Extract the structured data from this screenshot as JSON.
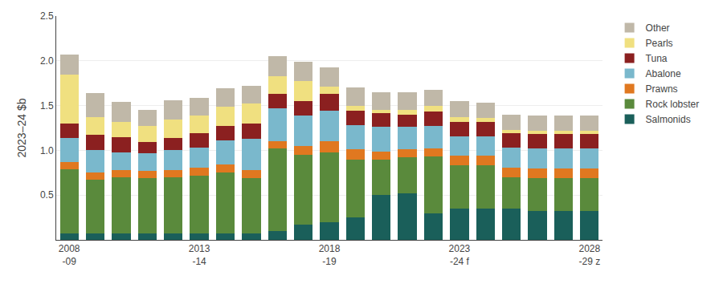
{
  "chart_data": {
    "type": "bar",
    "stacked": true,
    "categories": [
      "2008\n-09",
      null,
      null,
      null,
      null,
      "2013\n-14",
      null,
      null,
      null,
      null,
      "2018\n-19",
      null,
      null,
      null,
      null,
      "2023\n-24 f",
      null,
      null,
      null,
      null,
      "2028\n-29 z"
    ],
    "series": [
      {
        "name": "Salmonids",
        "color": "#1a5f5a",
        "values": [
          0.07,
          0.07,
          0.07,
          0.07,
          0.07,
          0.07,
          0.07,
          0.07,
          0.1,
          0.17,
          0.2,
          0.25,
          0.5,
          0.52,
          0.3,
          0.35,
          0.35,
          0.35,
          0.32,
          0.32,
          0.32
        ]
      },
      {
        "name": "Rock lobster",
        "color": "#5a8a3c",
        "values": [
          0.72,
          0.6,
          0.63,
          0.62,
          0.63,
          0.65,
          0.68,
          0.62,
          0.92,
          0.78,
          0.78,
          0.65,
          0.4,
          0.4,
          0.63,
          0.48,
          0.48,
          0.35,
          0.37,
          0.37,
          0.37
        ]
      },
      {
        "name": "Prawns",
        "color": "#e07820",
        "values": [
          0.08,
          0.08,
          0.08,
          0.08,
          0.08,
          0.09,
          0.09,
          0.09,
          0.08,
          0.1,
          0.12,
          0.11,
          0.09,
          0.09,
          0.09,
          0.11,
          0.11,
          0.11,
          0.11,
          0.11,
          0.11
        ]
      },
      {
        "name": "Abalone",
        "color": "#7ab8cc",
        "values": [
          0.27,
          0.25,
          0.2,
          0.2,
          0.22,
          0.22,
          0.27,
          0.35,
          0.37,
          0.34,
          0.34,
          0.27,
          0.27,
          0.25,
          0.25,
          0.22,
          0.22,
          0.22,
          0.22,
          0.22,
          0.22
        ]
      },
      {
        "name": "Tuna",
        "color": "#8b2020",
        "values": [
          0.16,
          0.17,
          0.17,
          0.12,
          0.14,
          0.16,
          0.16,
          0.17,
          0.16,
          0.16,
          0.19,
          0.16,
          0.16,
          0.14,
          0.16,
          0.16,
          0.16,
          0.16,
          0.16,
          0.16,
          0.16
        ]
      },
      {
        "name": "Pearls",
        "color": "#f0e080",
        "values": [
          0.55,
          0.2,
          0.17,
          0.18,
          0.2,
          0.2,
          0.22,
          0.22,
          0.2,
          0.22,
          0.08,
          0.06,
          0.03,
          0.05,
          0.07,
          0.05,
          0.04,
          0.04,
          0.04,
          0.04,
          0.04
        ]
      },
      {
        "name": "Other",
        "color": "#c0b8a8",
        "values": [
          0.22,
          0.27,
          0.22,
          0.18,
          0.22,
          0.2,
          0.2,
          0.2,
          0.22,
          0.22,
          0.22,
          0.2,
          0.2,
          0.2,
          0.18,
          0.18,
          0.17,
          0.17,
          0.17,
          0.17,
          0.17
        ]
      }
    ],
    "ylabel": "2023–24 $b",
    "ylim": [
      0,
      2.5
    ],
    "yticks": [
      0.5,
      {
        "value": 1.0,
        "label": "1.0"
      },
      1.5,
      {
        "value": 2.0,
        "label": "2.0"
      },
      2.5
    ],
    "grid": true,
    "legend": "upper right"
  }
}
